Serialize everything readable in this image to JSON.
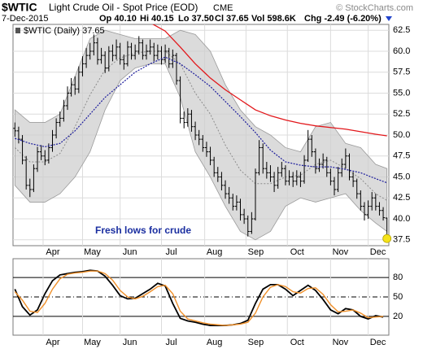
{
  "chart_data": [
    {
      "type": "ohlc",
      "title": "$WTIC",
      "subtitle": "Light Crude Oil - Spot Price (EOD)",
      "exchange": "CME",
      "source": "© StockCharts.com",
      "date": "7-Dec-2015",
      "quote": [
        "Op 40.10",
        "Hi 40.15",
        "Lo 37.50",
        "Cl 37.65",
        "Vol 598.6K",
        "Chg -2.49 (-6.20%)"
      ],
      "legend_label": "$WTIC (Daily) 37.65",
      "annotation": "Fresh lows for crude",
      "color": "#000000",
      "xlim": [
        -0.5,
        99.5
      ],
      "xticks": [
        {
          "value": 7.5,
          "label": "Apr"
        },
        {
          "value": 18,
          "label": "May"
        },
        {
          "value": 28,
          "label": "Jun"
        },
        {
          "value": 39,
          "label": "Jul"
        },
        {
          "value": 50.5,
          "label": "Aug"
        },
        {
          "value": 61.5,
          "label": "Sep"
        },
        {
          "value": 72.5,
          "label": "Oct"
        },
        {
          "value": 84,
          "label": "Nov"
        },
        {
          "value": 94,
          "label": "Dec"
        }
      ],
      "ylim": [
        36.8,
        63.2
      ],
      "yticks": [
        37.5,
        {
          "value": 40,
          "label": "40.0"
        },
        42.5,
        {
          "value": 45,
          "label": "45.0"
        },
        47.5,
        {
          "value": 50,
          "label": "50.0"
        },
        52.5,
        {
          "value": 55,
          "label": "55.0"
        },
        57.5,
        {
          "value": 60,
          "label": "60.0"
        },
        62.5
      ],
      "grid": true,
      "ohlc": {
        "open": [
          50.8,
          50.5,
          49.5,
          47,
          44,
          43.5,
          46,
          48,
          47.5,
          47,
          48.5,
          50,
          51.5,
          52,
          53.5,
          55,
          56,
          55.5,
          57.5,
          58.5,
          59.5,
          60,
          61,
          59,
          59.5,
          58,
          60,
          59.5,
          60.5,
          59,
          58.5,
          60.5,
          59.5,
          60,
          61,
          59.5,
          60,
          60.5,
          59.5,
          60,
          59,
          60,
          58.5,
          59.5,
          56.5,
          52,
          51.5,
          52.5,
          51,
          50,
          49.5,
          48.5,
          48,
          47,
          45.5,
          45,
          44,
          43,
          42.5,
          41.5,
          42,
          40.5,
          40,
          38.5,
          40,
          45.5,
          48.5,
          46,
          45.5,
          45,
          44,
          45.5,
          46,
          44.5,
          45,
          44.5,
          45,
          44.5,
          47,
          49.5,
          48,
          46,
          46.5,
          47,
          45.5,
          44.5,
          43.5,
          45.5,
          46.5,
          47.5,
          45,
          44.5,
          43,
          41.5,
          40.5,
          41.5,
          42.5,
          41.5,
          41,
          40.1
        ],
        "high": [
          51.5,
          51.0,
          50.0,
          47.5,
          44.8,
          46.5,
          48.6,
          48.8,
          48.2,
          49.0,
          50.6,
          52.0,
          52.8,
          54.2,
          55.8,
          56.8,
          57.0,
          58.2,
          59.4,
          60.4,
          61.0,
          62.0,
          61.6,
          60.4,
          60.0,
          60.6,
          60.8,
          61.4,
          61.0,
          59.6,
          61.2,
          61.0,
          60.8,
          61.8,
          61.4,
          60.8,
          61.4,
          61.0,
          60.8,
          60.6,
          60.8,
          60.4,
          60.2,
          59.8,
          57.0,
          52.8,
          53.2,
          53.0,
          51.6,
          50.6,
          50.0,
          49.2,
          48.6,
          47.4,
          46.2,
          45.6,
          44.6,
          43.8,
          43.0,
          42.8,
          42.4,
          41.2,
          40.4,
          40.8,
          46.0,
          49.4,
          49.0,
          46.8,
          46.4,
          45.6,
          46.2,
          46.8,
          46.4,
          45.8,
          45.6,
          45.8,
          45.6,
          47.6,
          50.6,
          50.0,
          48.4,
          47.2,
          47.8,
          47.4,
          46.0,
          45.0,
          46.2,
          47.2,
          48.4,
          47.8,
          45.6,
          44.8,
          43.4,
          42.0,
          42.2,
          43.2,
          43.0,
          42.0,
          41.4,
          40.15
        ],
        "low": [
          49.8,
          49.0,
          46.5,
          43.5,
          42.6,
          43.2,
          45.6,
          47.0,
          46.4,
          46.6,
          48.0,
          49.6,
          51.0,
          51.6,
          53.0,
          54.6,
          54.8,
          55.0,
          57.0,
          58.0,
          59.0,
          59.5,
          58.4,
          58.5,
          57.4,
          57.6,
          58.8,
          59.0,
          58.4,
          57.8,
          58.2,
          59.0,
          59.0,
          59.6,
          59.0,
          59.0,
          59.6,
          58.8,
          59.0,
          58.4,
          58.6,
          58.0,
          58.0,
          56.0,
          51.4,
          50.8,
          51.0,
          50.4,
          49.4,
          48.8,
          48.0,
          47.4,
          46.4,
          45.0,
          44.4,
          43.4,
          42.4,
          41.8,
          41.0,
          41.0,
          39.8,
          39.4,
          37.9,
          38.2,
          39.8,
          45.2,
          45.4,
          44.8,
          44.4,
          43.2,
          43.6,
          45.0,
          44.0,
          44.0,
          43.8,
          44.0,
          43.8,
          44.2,
          46.8,
          47.4,
          45.4,
          45.6,
          46.0,
          45.0,
          44.0,
          42.8,
          43.2,
          45.0,
          46.0,
          44.6,
          43.8,
          42.4,
          41.0,
          39.8,
          40.0,
          41.0,
          41.0,
          40.4,
          39.8,
          37.5
        ],
        "close": [
          50.5,
          49.5,
          47,
          44,
          43.5,
          46,
          48,
          47.5,
          47,
          48.5,
          50,
          51.5,
          52,
          53.5,
          55,
          56,
          55.5,
          57.5,
          58.5,
          59.5,
          60,
          61,
          59,
          59.5,
          58,
          60,
          59.5,
          60.5,
          59,
          58.5,
          60.5,
          59.5,
          60,
          61,
          59.5,
          60,
          60.5,
          59.5,
          60,
          59,
          60,
          58.5,
          59.5,
          56.5,
          52,
          51.5,
          52.5,
          51,
          50,
          49.5,
          48.5,
          48,
          47,
          45.5,
          45,
          44,
          43,
          42.5,
          41.5,
          42,
          40.5,
          40,
          38.5,
          40,
          45.5,
          48.5,
          46,
          45.5,
          45,
          44,
          45.5,
          46,
          44.5,
          45,
          44.5,
          45,
          44.5,
          47,
          49.5,
          48,
          46,
          46.5,
          47,
          45.5,
          44.5,
          43.5,
          45.5,
          46.5,
          47.5,
          45,
          44.5,
          43,
          41.5,
          40.5,
          41.5,
          42.5,
          41.5,
          41,
          40.14,
          37.65
        ]
      },
      "overlay_x": [
        0,
        4,
        8,
        12,
        16,
        20,
        24,
        28,
        32,
        36,
        40,
        44,
        48,
        52,
        56,
        60,
        64,
        68,
        72,
        76,
        80,
        84,
        88,
        92,
        96,
        99
      ],
      "bollinger": {
        "color": "#cfcfcf",
        "upper": [
          53,
          51.5,
          51.5,
          52.5,
          57,
          61.5,
          62.5,
          62,
          61.5,
          61.5,
          61.5,
          62.5,
          62,
          60,
          56,
          53,
          51,
          50,
          48.5,
          48,
          51,
          51.5,
          49,
          48.5,
          46.5,
          46
        ],
        "middle": [
          48.5,
          46.8,
          46.8,
          47.8,
          51,
          54.8,
          57.8,
          59.2,
          59.8,
          60,
          60,
          58.5,
          55,
          52.5,
          48.8,
          45.8,
          44.2,
          44.2,
          45,
          45.2,
          46.5,
          47,
          46,
          44.8,
          43,
          42.2
        ],
        "lower": [
          44,
          42,
          42,
          43,
          45,
          48,
          53,
          56.5,
          58,
          58.5,
          58.5,
          54.5,
          48,
          45,
          41.5,
          38.5,
          37.5,
          38.5,
          41.5,
          42.5,
          42,
          42.5,
          43,
          41,
          39.5,
          38.5
        ]
      },
      "moving_averages": [
        {
          "color": "#1c1c9c",
          "values": [
            49.6,
            49,
            48.6,
            49,
            50.5,
            52.5,
            54.5,
            56,
            57.5,
            58.5,
            59.3,
            58.5,
            57.2,
            55.8,
            54,
            52.2,
            50.3,
            48.2,
            46.8,
            46.4,
            46.2,
            46.2,
            45.9,
            45.5,
            44.8,
            44.3
          ]
        },
        {
          "color": "#e2171b",
          "values": [
            null,
            null,
            null,
            null,
            null,
            null,
            null,
            null,
            null,
            63.4,
            62.4,
            60.5,
            58.5,
            56.8,
            55.4,
            54.2,
            53,
            52.3,
            51.8,
            51.4,
            51.1,
            50.9,
            50.7,
            50.4,
            50.1,
            49.9
          ]
        }
      ]
    },
    {
      "type": "line",
      "xlim": [
        -0.5,
        99.5
      ],
      "xticks": [
        {
          "value": 7.5,
          "label": "Apr"
        },
        {
          "value": 18,
          "label": "May"
        },
        {
          "value": 28,
          "label": "Jun"
        },
        {
          "value": 39,
          "label": "Jul"
        },
        {
          "value": 50.5,
          "label": "Aug"
        },
        {
          "value": 61.5,
          "label": "Sep"
        },
        {
          "value": 72.5,
          "label": "Oct"
        },
        {
          "value": 84,
          "label": "Nov"
        },
        {
          "value": 94,
          "label": "Dec"
        }
      ],
      "ylim": [
        -9,
        109
      ],
      "yticks": [
        20,
        50,
        80
      ],
      "grid": true,
      "x": [
        0,
        2,
        4,
        6,
        8,
        10,
        12,
        14,
        16,
        18,
        20,
        22,
        24,
        26,
        28,
        30,
        32,
        34,
        36,
        38,
        40,
        42,
        44,
        46,
        48,
        50,
        52,
        54,
        56,
        58,
        60,
        62,
        64,
        66,
        68,
        70,
        72,
        74,
        76,
        78,
        80,
        82,
        84,
        86,
        88,
        90,
        92,
        94,
        96,
        98
      ],
      "series": [
        {
          "color": "#000000",
          "values": [
            62,
            35,
            22,
            30,
            55,
            75,
            84,
            86,
            88,
            89,
            91,
            90,
            82,
            68,
            52,
            47,
            48,
            55,
            62,
            71,
            67,
            40,
            17,
            13,
            11,
            8,
            6,
            6,
            6,
            7,
            9,
            14,
            40,
            62,
            69,
            69,
            62,
            52,
            60,
            68,
            60,
            46,
            30,
            24,
            32,
            30,
            20,
            16,
            21,
            19
          ]
        },
        {
          "color": "#f0902a",
          "values": [
            58,
            45,
            28,
            26,
            40,
            62,
            78,
            85,
            87,
            88,
            90,
            90,
            86,
            76,
            60,
            50,
            47,
            51,
            58,
            66,
            68,
            55,
            28,
            16,
            13,
            10,
            8,
            7,
            6,
            7,
            8,
            11,
            25,
            50,
            65,
            69,
            66,
            58,
            56,
            63,
            64,
            54,
            38,
            27,
            28,
            30,
            25,
            18,
            19,
            20
          ]
        }
      ]
    }
  ]
}
